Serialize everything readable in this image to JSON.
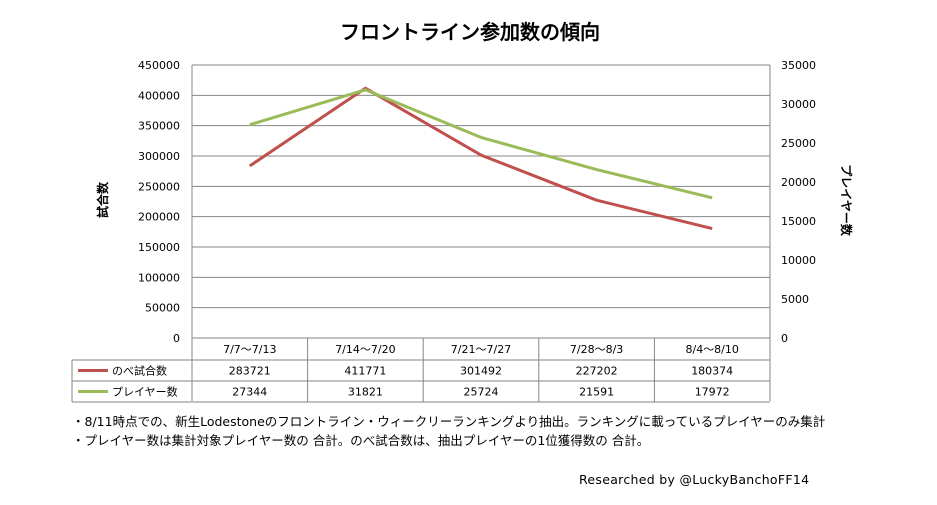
{
  "chart_data": {
    "type": "line",
    "title": "フロントライン参加数の傾向",
    "categories": [
      "7/7〜7/13",
      "7/14〜7/20",
      "7/21〜7/27",
      "7/28〜8/3",
      "8/4〜8/10"
    ],
    "series": [
      {
        "name": "のべ試合数",
        "axis": "left",
        "color": "#c0504d",
        "values": [
          283721,
          411771,
          301492,
          227202,
          180374
        ]
      },
      {
        "name": "プレイヤー数",
        "axis": "right",
        "color": "#9bbb59",
        "values": [
          27344,
          31821,
          25724,
          21591,
          17972
        ]
      }
    ],
    "ylabel_left": "試合数",
    "ylabel_right": "プレイヤー数",
    "ylim_left": [
      0,
      450000
    ],
    "yticks_left": [
      "450000",
      "400000",
      "350000",
      "300000",
      "250000",
      "200000",
      "150000",
      "100000",
      "50000",
      "0"
    ],
    "ylim_right": [
      0,
      35000
    ],
    "yticks_right": [
      "35000",
      "30000",
      "25000",
      "20000",
      "15000",
      "10000",
      "5000",
      "0"
    ],
    "grid": true,
    "legend": "data-table"
  },
  "notes": [
    "・8/11時点での、新生Lodestoneのフロントライン・ウィークリーランキングより抽出。ランキングに載っているプレイヤーのみ集計",
    "・プレイヤー数は集計対象プレイヤー数の 合計。のべ試合数は、抽出プレイヤーの1位獲得数の 合計。"
  ],
  "credit": "Researched by @LuckyBanchoFF14"
}
